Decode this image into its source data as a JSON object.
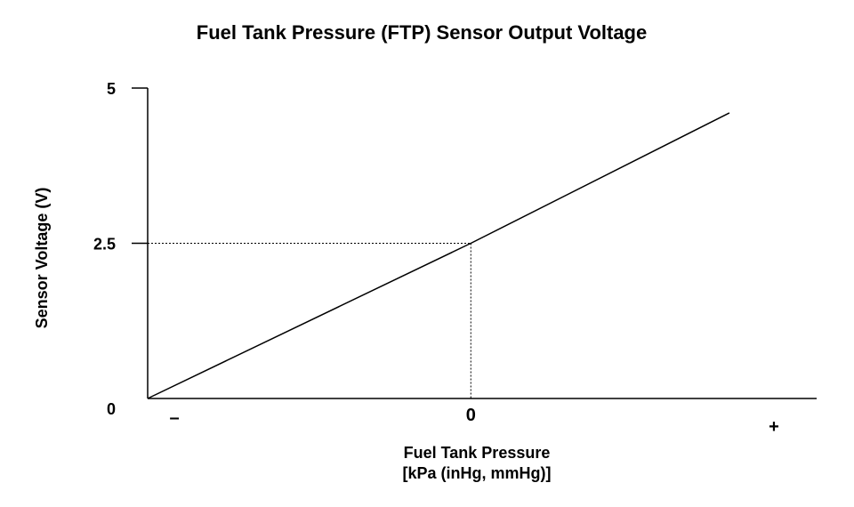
{
  "chart_data": {
    "type": "line",
    "title": "Fuel Tank Pressure (FTP) Sensor Output Voltage",
    "xlabel_line1": "Fuel Tank Pressure",
    "xlabel_line2": "[kPa (inHg, mmHg)]",
    "ylabel": "Sensor Voltage (V)",
    "x_ticks": [
      {
        "label": "–",
        "value": -1
      },
      {
        "label": "0",
        "value": 0
      },
      {
        "label": "+",
        "value": 1
      }
    ],
    "y_ticks": [
      {
        "label": "0",
        "value": 0
      },
      {
        "label": "2.5",
        "value": 2.5
      },
      {
        "label": "5",
        "value": 5
      }
    ],
    "xlim": [
      -1,
      1.07
    ],
    "ylim": [
      0,
      5
    ],
    "series": [
      {
        "points": [
          {
            "x": -1,
            "y": 0
          },
          {
            "x": 0,
            "y": 2.5
          },
          {
            "x": 0.8,
            "y": 4.6
          }
        ]
      }
    ],
    "reference_point": {
      "x": 0,
      "y": 2.5
    },
    "grid": false,
    "colors": {
      "line": "#000000",
      "axis": "#000000",
      "background": "#ffffff"
    }
  }
}
